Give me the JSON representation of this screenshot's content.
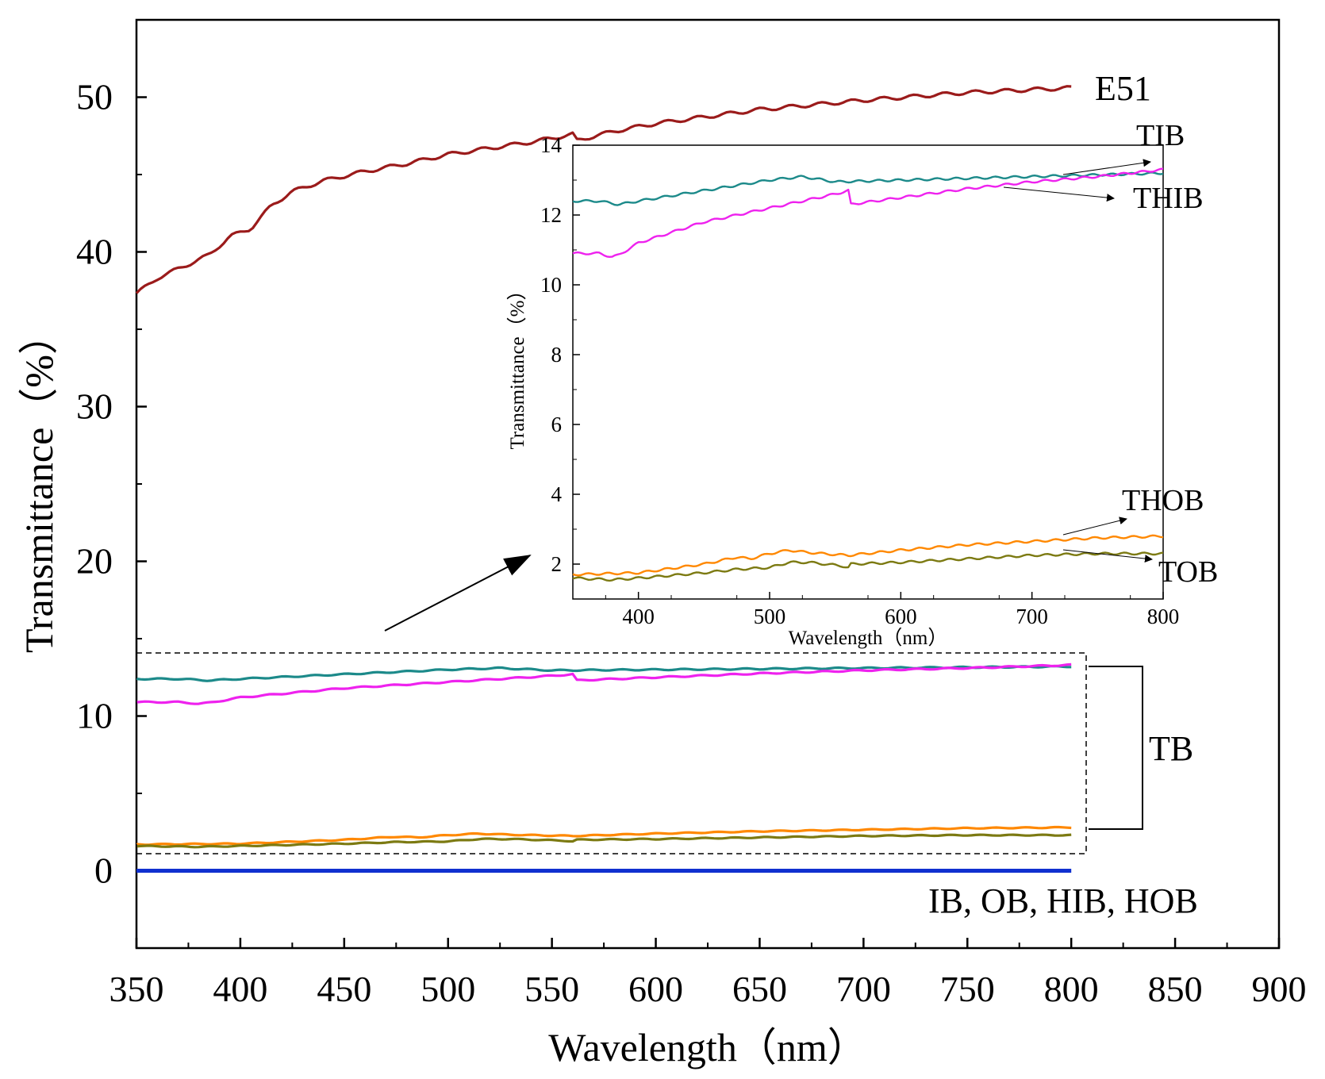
{
  "chart_data": [
    {
      "id": "main",
      "type": "line",
      "xlabel": "Wavelength（nm）",
      "ylabel": "Transmittance（%）",
      "xlim": [
        350,
        900
      ],
      "ylim": [
        -5,
        55
      ],
      "xticks": [
        350,
        400,
        450,
        500,
        550,
        600,
        650,
        700,
        750,
        800,
        850,
        900
      ],
      "yticks": [
        0,
        10,
        20,
        30,
        40,
        50
      ],
      "series": [
        {
          "name": "E51",
          "color": "#9B1B1B",
          "x": [
            350,
            360,
            375,
            385,
            395,
            405,
            415,
            425,
            440,
            460,
            480,
            500,
            520,
            540,
            560,
            562,
            580,
            600,
            650,
            700,
            750,
            800
          ],
          "y": [
            37.3,
            38.3,
            39.2,
            39.8,
            41.0,
            41.5,
            43.0,
            43.9,
            44.6,
            45.2,
            45.7,
            46.3,
            46.7,
            47.1,
            47.6,
            47.2,
            47.8,
            48.3,
            49.2,
            49.8,
            50.3,
            50.6
          ]
        },
        {
          "name": "TIB",
          "color": "#1C8A8A",
          "x": [
            350,
            370,
            385,
            400,
            450,
            500,
            525,
            550,
            600,
            650,
            700,
            750,
            800
          ],
          "y": [
            12.4,
            12.4,
            12.3,
            12.4,
            12.7,
            13.0,
            13.1,
            12.95,
            13.0,
            13.05,
            13.1,
            13.15,
            13.2
          ]
        },
        {
          "name": "THIB",
          "color": "#EE22EE",
          "x": [
            350,
            370,
            380,
            385,
            400,
            450,
            500,
            550,
            560,
            561,
            600,
            650,
            700,
            750,
            800
          ],
          "y": [
            10.9,
            10.9,
            10.8,
            10.85,
            11.2,
            11.8,
            12.2,
            12.6,
            12.7,
            12.3,
            12.5,
            12.75,
            12.95,
            13.1,
            13.3
          ]
        },
        {
          "name": "THOB",
          "color": "#FF8800",
          "x": [
            350,
            400,
            450,
            475,
            485,
            500,
            515,
            525,
            540,
            560,
            600,
            650,
            700,
            750,
            800
          ],
          "y": [
            1.7,
            1.75,
            2.0,
            2.2,
            2.15,
            2.3,
            2.4,
            2.35,
            2.3,
            2.25,
            2.4,
            2.55,
            2.65,
            2.75,
            2.8
          ]
        },
        {
          "name": "TOB",
          "color": "#7C7A12",
          "x": [
            350,
            380,
            400,
            450,
            475,
            500,
            515,
            530,
            555,
            560,
            561,
            600,
            650,
            700,
            750,
            800
          ],
          "y": [
            1.6,
            1.55,
            1.6,
            1.75,
            1.85,
            1.9,
            2.05,
            2.05,
            1.95,
            1.9,
            2.0,
            2.05,
            2.15,
            2.25,
            2.3,
            2.3
          ]
        },
        {
          "name": "IB, OB, HIB, HOB",
          "color": "#1030D0",
          "x": [
            350,
            800
          ],
          "y": [
            0.0,
            0.0
          ]
        }
      ],
      "annotations": [
        "E51",
        "TB",
        "IB, OB, HIB, HOB"
      ]
    },
    {
      "id": "inset",
      "type": "line",
      "xlabel": "Wavelength（nm）",
      "ylabel": "Transmittance（%）",
      "xlim": [
        350,
        800
      ],
      "ylim": [
        1,
        14
      ],
      "xticks": [
        400,
        500,
        600,
        700,
        800
      ],
      "yticks": [
        2,
        4,
        6,
        8,
        10,
        12,
        14
      ],
      "series_refs": [
        "TIB",
        "THIB",
        "THOB",
        "TOB"
      ],
      "annotations": [
        "TIB",
        "THIB",
        "THOB",
        "TOB"
      ]
    }
  ]
}
